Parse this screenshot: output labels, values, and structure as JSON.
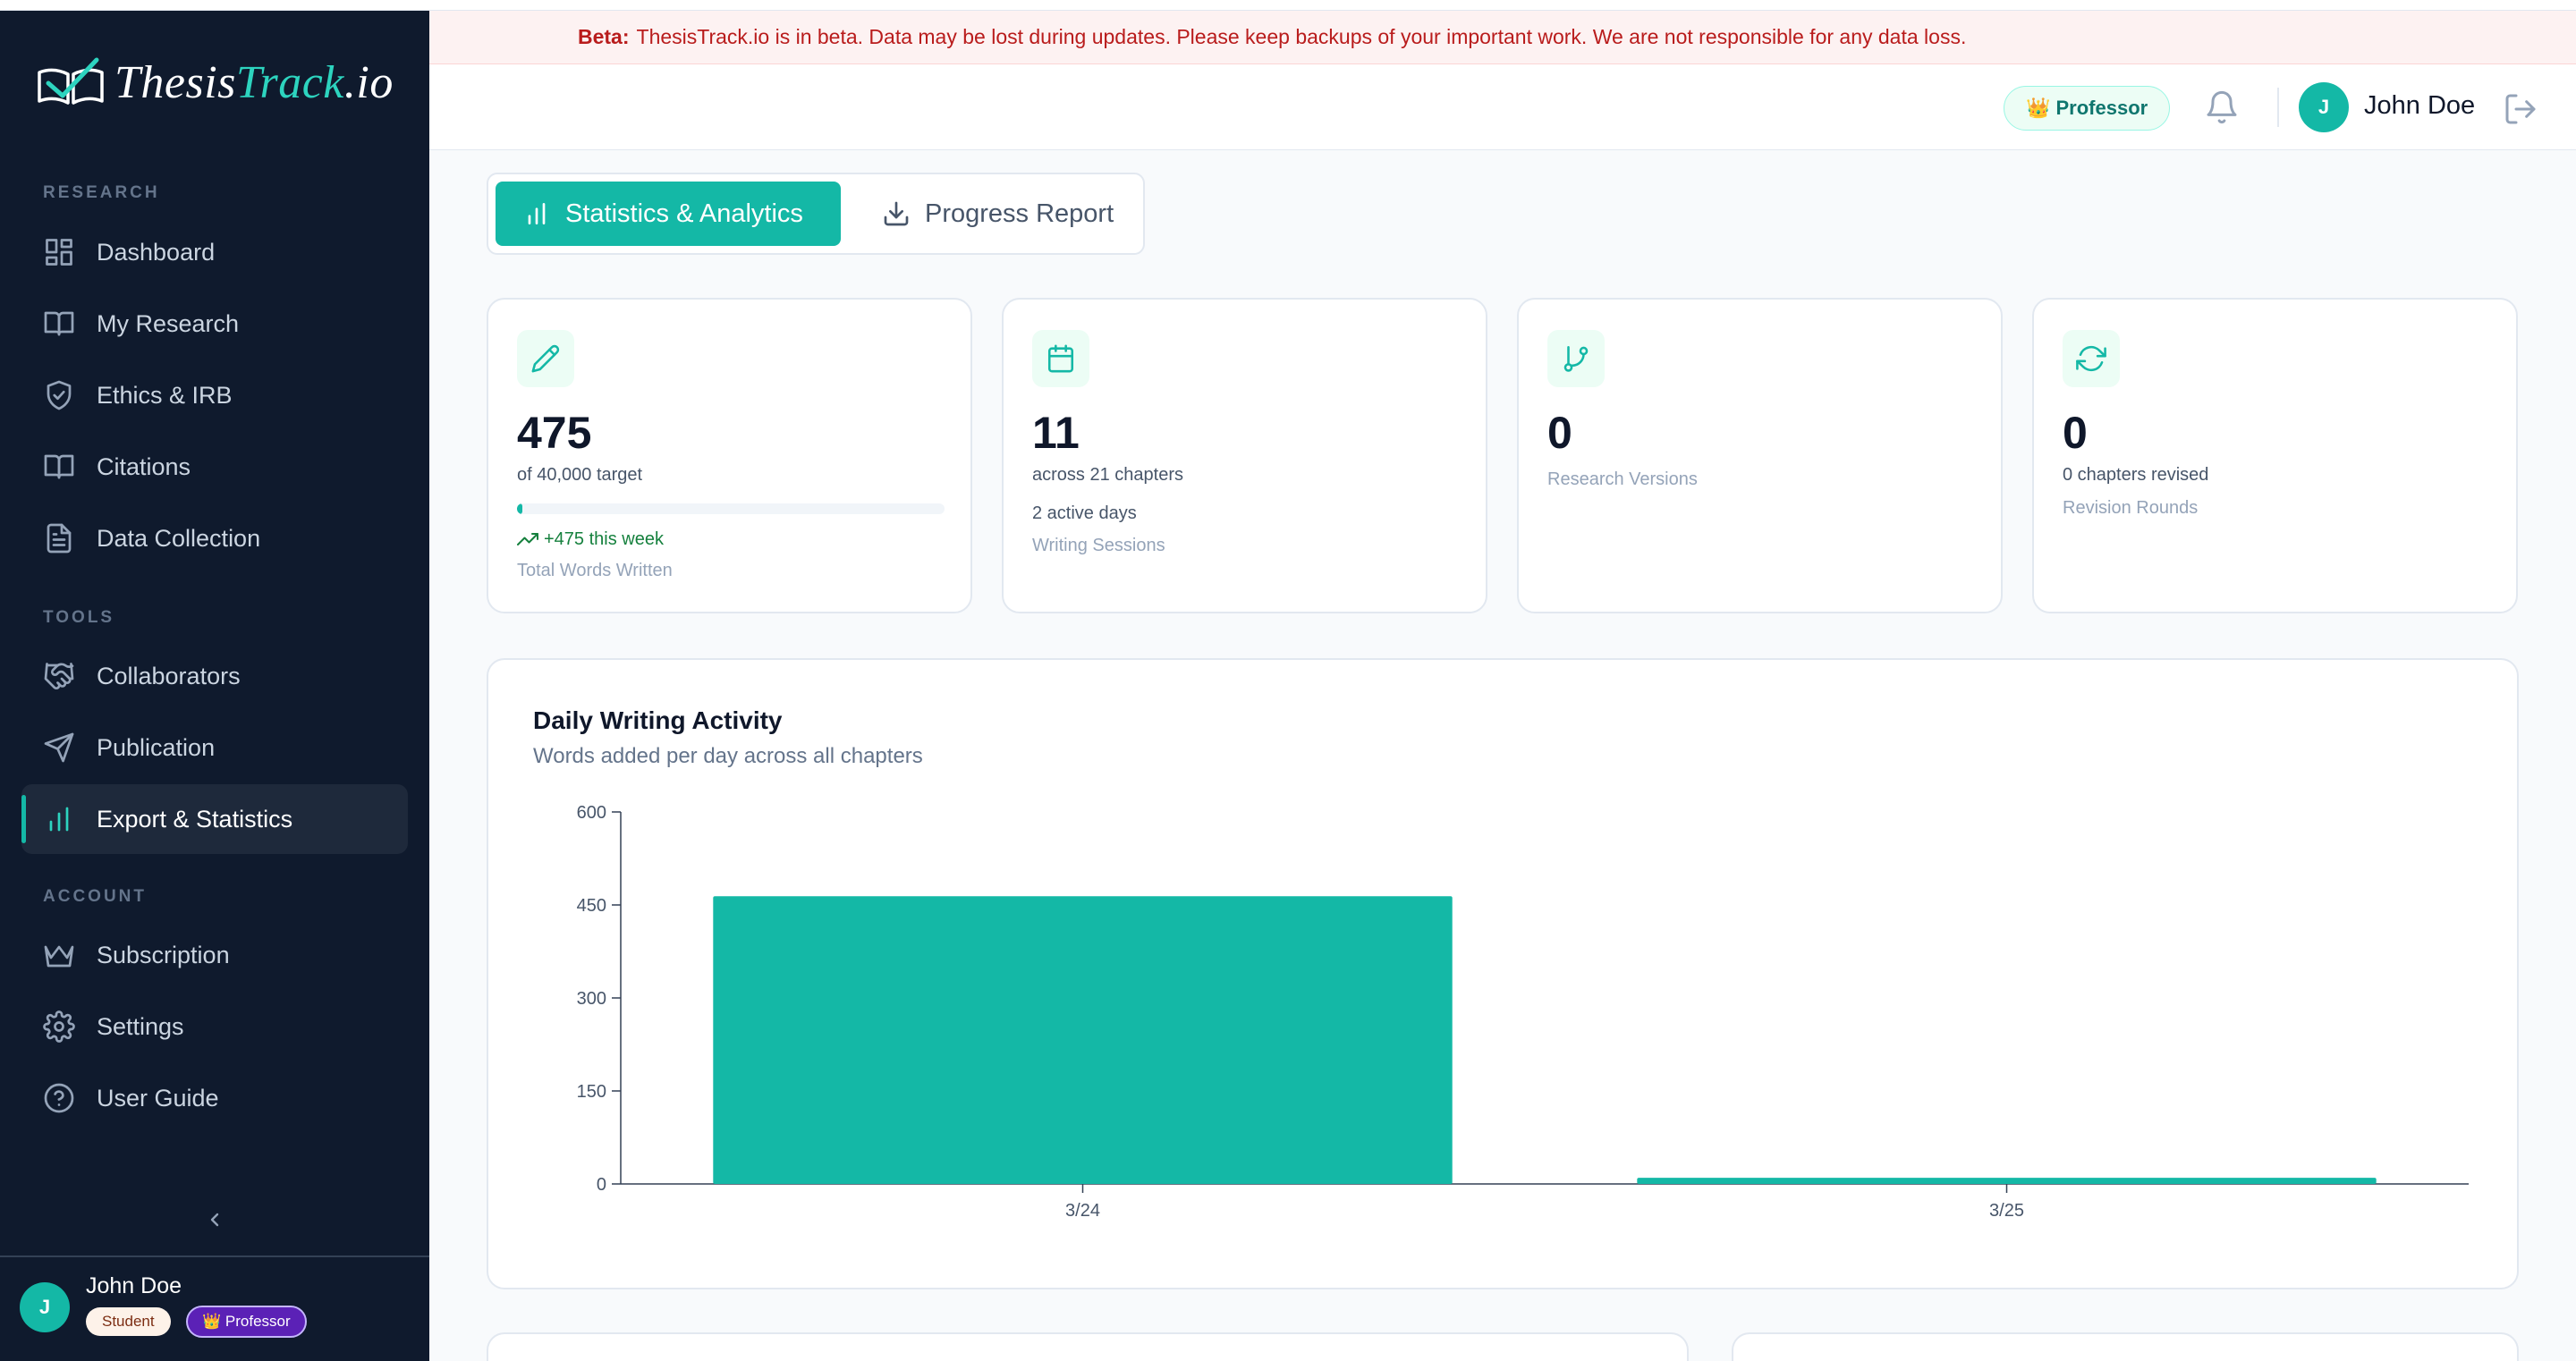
{
  "app": {
    "logo_main": "Thesis",
    "logo_accent": "Track",
    "logo_suffix": ".io"
  },
  "beta_banner": {
    "label": "Beta:",
    "message": "ThesisTrack.io is in beta. Data may be lost during updates. Please keep backups of your important work. We are not responsible for any data loss."
  },
  "sidebar": {
    "sections": [
      {
        "label": "RESEARCH",
        "items": [
          {
            "label": "Dashboard",
            "icon": "dashboard-icon"
          },
          {
            "label": "My Research",
            "icon": "book-icon"
          },
          {
            "label": "Ethics & IRB",
            "icon": "shield-check-icon"
          },
          {
            "label": "Citations",
            "icon": "book-open-icon"
          },
          {
            "label": "Data Collection",
            "icon": "file-text-icon"
          }
        ]
      },
      {
        "label": "TOOLS",
        "items": [
          {
            "label": "Collaborators",
            "icon": "handshake-icon"
          },
          {
            "label": "Publication",
            "icon": "send-icon"
          },
          {
            "label": "Export & Statistics",
            "icon": "bar-chart-icon",
            "active": true
          }
        ]
      },
      {
        "label": "ACCOUNT",
        "items": [
          {
            "label": "Subscription",
            "icon": "crown-icon"
          },
          {
            "label": "Settings",
            "icon": "gear-icon"
          },
          {
            "label": "User Guide",
            "icon": "help-circle-icon"
          }
        ]
      }
    ],
    "user": {
      "initial": "J",
      "name": "John Doe",
      "badge_student": "Student",
      "badge_professor": "👑 Professor"
    }
  },
  "header": {
    "role_pill": "👑 Professor",
    "user_initial": "J",
    "user_name": "John Doe"
  },
  "tabs": [
    {
      "label": "Statistics & Analytics",
      "icon": "bar-chart-icon",
      "active": true
    },
    {
      "label": "Progress Report",
      "icon": "download-icon",
      "active": false
    }
  ],
  "stats": [
    {
      "icon": "pencil-icon",
      "value": "475",
      "sub": "of 40,000 target",
      "progress": 0.011875,
      "trend": "+475 this week",
      "caption": "Total Words Written"
    },
    {
      "icon": "calendar-icon",
      "value": "11",
      "sub": "across 21 chapters",
      "sub2": "2 active days",
      "caption": "Writing Sessions"
    },
    {
      "icon": "git-branch-icon",
      "value": "0",
      "caption": "Research Versions"
    },
    {
      "icon": "refresh-icon",
      "value": "0",
      "sub": "0 chapters revised",
      "caption": "Revision Rounds"
    }
  ],
  "chart": {
    "title": "Daily Writing Activity",
    "subtitle": "Words added per day across all chapters"
  },
  "colors": {
    "accent": "#14b8a6",
    "sidebar_bg": "#0f1a2d",
    "beta_text": "#b91c1c"
  },
  "chart_data": {
    "type": "bar",
    "categories": [
      "3/24",
      "3/25"
    ],
    "values": [
      464,
      10
    ],
    "ylim": [
      0,
      600
    ],
    "yticks": [
      0,
      150,
      300,
      450,
      600
    ],
    "title": "Daily Writing Activity",
    "subtitle": "Words added per day across all chapters",
    "xlabel": "",
    "ylabel": "",
    "grid": false,
    "legend": "none"
  }
}
